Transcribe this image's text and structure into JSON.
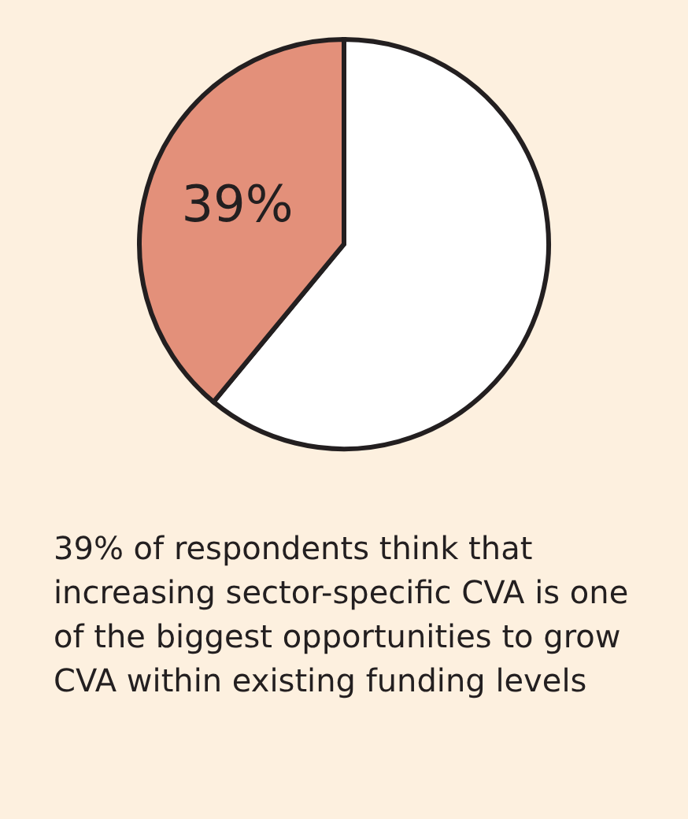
{
  "chart_data": {
    "type": "pie",
    "categories": [
      null,
      null
    ],
    "values": [
      61,
      39
    ],
    "colors": [
      "#ffffff",
      "#e3907a"
    ],
    "value_labels": [
      null,
      "39%"
    ],
    "annotations": [
      "39% of respondents think that increasing sector-specific CVA is one of the biggest opportunities to grow CVA within existing funding levels"
    ]
  }
}
